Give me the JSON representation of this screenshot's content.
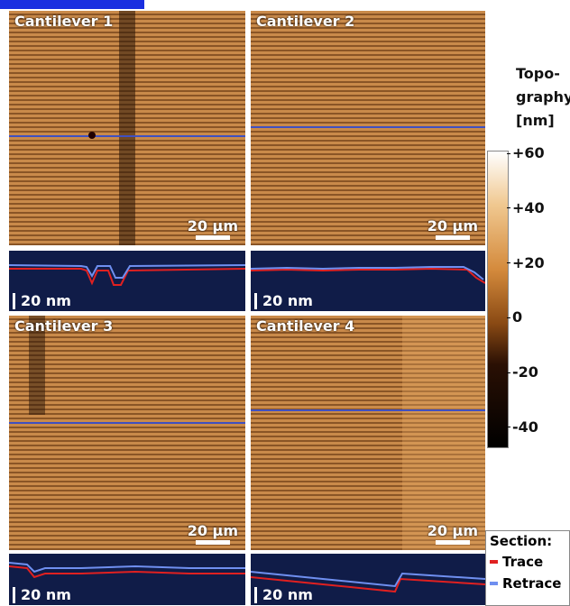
{
  "panels": [
    {
      "label": "Cantilever 1",
      "scale": "20 µm",
      "section_scale": "20 nm"
    },
    {
      "label": "Cantilever 2",
      "scale": "20 µm",
      "section_scale": "20 nm"
    },
    {
      "label": "Cantilever 3",
      "scale": "20 µm",
      "section_scale": "20 nm"
    },
    {
      "label": "Cantilever 4",
      "scale": "20 µm",
      "section_scale": "20 nm"
    }
  ],
  "colorbar": {
    "title": [
      "Topo-",
      "graphy",
      "[nm]"
    ],
    "lim": [
      -47,
      61
    ],
    "ticks": [
      {
        "value": 60,
        "label": "+60"
      },
      {
        "value": 40,
        "label": "+40"
      },
      {
        "value": 20,
        "label": "+20"
      },
      0,
      -20,
      -40
    ]
  },
  "legend": {
    "title": "Section:",
    "items": [
      {
        "name": "Trace",
        "color": "#e02020"
      },
      {
        "name": "Retrace",
        "color": "#6f8ff0"
      }
    ]
  }
}
